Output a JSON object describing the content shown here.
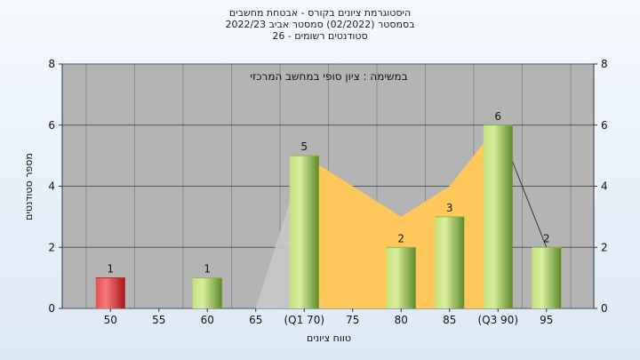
{
  "chart_data": {
    "type": "bar",
    "title_lines": [
      "היסטוגרמת ציונים בקורס - אבטחת מחשבים",
      "בסמסטר  (02/2022)  סמסטר אביב 2022/23",
      "סטודנטים רשומים - 26"
    ],
    "annotation": "במשימה : ציון סופי במחשב המרכזי",
    "xlabel": "טווח ציונים",
    "ylabel": "מספר סטודנטים",
    "x_ticks": [
      "50",
      "55",
      "60",
      "65",
      "(Q1 70)",
      "75",
      "80",
      "85",
      "(Q3 90)",
      "95"
    ],
    "y_ticks": [
      "0",
      "2",
      "4",
      "6",
      "8"
    ],
    "ylim": [
      0,
      8
    ],
    "bars": [
      {
        "category": "50",
        "value": 1,
        "label": "1",
        "color": "red"
      },
      {
        "category": "60",
        "value": 1,
        "label": "1",
        "color": "green"
      },
      {
        "category": "(Q1 70)",
        "value": 5,
        "label": "5",
        "color": "green"
      },
      {
        "category": "80",
        "value": 2,
        "label": "2",
        "color": "green"
      },
      {
        "category": "85",
        "value": 3,
        "label": "3",
        "color": "green"
      },
      {
        "category": "(Q3 90)",
        "value": 6,
        "label": "6",
        "color": "green"
      },
      {
        "category": "95",
        "value": 2,
        "label": "2",
        "color": "green"
      }
    ],
    "distribution_area": [
      {
        "x": 65,
        "y": 0
      },
      {
        "x": 70,
        "y": 5
      },
      {
        "x": 75,
        "y": 4
      },
      {
        "x": 80,
        "y": 3
      },
      {
        "x": 85,
        "y": 4
      },
      {
        "x": 90,
        "y": 6
      },
      {
        "x": 95,
        "y": 2
      }
    ],
    "colors": {
      "plot_bg": "#b4b4b4",
      "area_fill": "#ffc85a",
      "area_gray": "#c8c8c8",
      "bar_green_light": "#d6ea9a",
      "bar_green_dark": "#5f8a2a",
      "bar_red_light": "#f07070",
      "bar_red_dark": "#b01818"
    },
    "grid": true
  }
}
